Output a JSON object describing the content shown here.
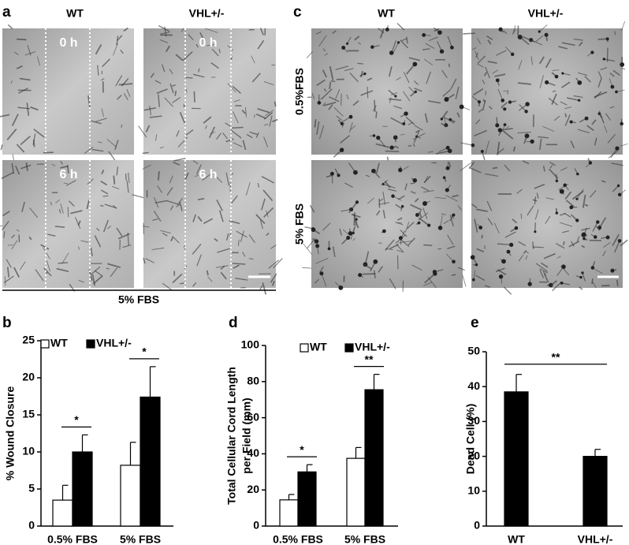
{
  "panel_a": {
    "label": "a",
    "columns": [
      "WT",
      "VHL+/-"
    ],
    "times": [
      "0 h",
      "6 h"
    ],
    "footer": "5% FBS"
  },
  "panel_c": {
    "label": "c",
    "columns": [
      "WT",
      "VHL+/-"
    ],
    "rows": [
      "0.5%FBS",
      "5% FBS"
    ]
  },
  "chart_data": [
    {
      "type": "bar",
      "panel_label": "b",
      "ylabel": [
        "% Wound Closure"
      ],
      "categories": [
        "0.5% FBS",
        "5% FBS"
      ],
      "series": [
        {
          "name": "WT",
          "color": "#ffffff",
          "values": [
            3.5,
            8.2
          ],
          "errors": [
            2.0,
            3.1
          ]
        },
        {
          "name": "VHL+/-",
          "color": "#000000",
          "values": [
            10.0,
            17.4
          ],
          "errors": [
            2.3,
            4.1
          ]
        }
      ],
      "significance": [
        "*",
        "*"
      ],
      "ylim": [
        0,
        25
      ],
      "yticks": [
        0,
        5,
        10,
        15,
        20,
        25
      ],
      "legend": "top-left"
    },
    {
      "type": "bar",
      "panel_label": "d",
      "ylabel": [
        "Total Cellular Cord Length",
        "per Field (mm)"
      ],
      "categories": [
        "0.5% FBS",
        "5% FBS"
      ],
      "series": [
        {
          "name": "WT",
          "color": "#ffffff",
          "values": [
            14.5,
            37.5
          ],
          "errors": [
            3.0,
            6.0
          ]
        },
        {
          "name": "VHL+/-",
          "color": "#000000",
          "values": [
            30.0,
            75.5
          ],
          "errors": [
            4.0,
            8.5
          ]
        }
      ],
      "significance": [
        "*",
        "**"
      ],
      "ylim": [
        0,
        100
      ],
      "yticks": [
        0,
        20,
        40,
        60,
        80,
        100
      ],
      "legend": "top-left"
    },
    {
      "type": "bar",
      "panel_label": "e",
      "ylabel": [
        "Dead Cell (%)"
      ],
      "categories": [
        "WT",
        "VHL+/-"
      ],
      "values": [
        38.5,
        20.0
      ],
      "errors": [
        5.0,
        2.0
      ],
      "color": "#000000",
      "significance": "**",
      "ylim": [
        0,
        50
      ],
      "yticks": [
        0,
        10,
        20,
        30,
        40,
        50
      ]
    }
  ]
}
